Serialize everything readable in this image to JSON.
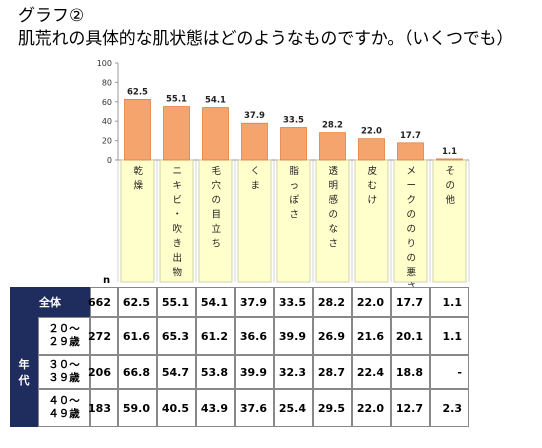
{
  "title": {
    "line1": "グラフ②",
    "line2": "肌荒れの具体的な肌状態はどのようなものですか。（いくつでも）"
  },
  "chart_data": {
    "type": "bar",
    "categories": [
      "乾燥",
      "ニキビ・吹き出物",
      "毛穴の目立ち",
      "くま",
      "脂っぽさ",
      "透明感のなさ",
      "皮むけ",
      "メークののりの悪さ",
      "その他"
    ],
    "values": [
      62.5,
      55.1,
      54.1,
      37.9,
      33.5,
      28.2,
      22.0,
      17.7,
      1.1
    ],
    "value_labels": [
      "62.5",
      "55.1",
      "54.1",
      "37.9",
      "33.5",
      "28.2",
      "22.0",
      "17.7",
      "1.1"
    ],
    "ylim": [
      0,
      100
    ],
    "yticks": [
      "0",
      "20",
      "40",
      "60",
      "80",
      "100"
    ],
    "grid": false,
    "colors": {
      "bar": "#f4a46c",
      "bar_edge": "#e27f3f",
      "label_bg": "#ffffcc",
      "header_bg": "#1f2c5e"
    }
  },
  "table": {
    "n_label": "n",
    "group_label": "年代",
    "rows": [
      {
        "label": "全体",
        "n": "662",
        "values": [
          "62.5",
          "55.1",
          "54.1",
          "37.9",
          "33.5",
          "28.2",
          "22.0",
          "17.7",
          "1.1"
        ]
      },
      {
        "label_lines": [
          "２０～",
          "２９歳"
        ],
        "n": "272",
        "values": [
          "61.6",
          "65.3",
          "61.2",
          "36.6",
          "39.9",
          "26.9",
          "21.6",
          "20.1",
          "1.1"
        ]
      },
      {
        "label_lines": [
          "３０～",
          "３９歳"
        ],
        "n": "206",
        "values": [
          "66.8",
          "54.7",
          "53.8",
          "39.9",
          "32.3",
          "28.7",
          "22.4",
          "18.8",
          "-"
        ]
      },
      {
        "label_lines": [
          "４０～",
          "４９歳"
        ],
        "n": "183",
        "values": [
          "59.0",
          "40.5",
          "43.9",
          "37.6",
          "25.4",
          "29.5",
          "22.0",
          "12.7",
          "2.3"
        ]
      }
    ]
  }
}
